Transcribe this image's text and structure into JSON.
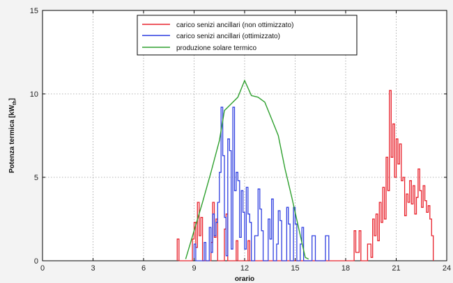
{
  "chart_data": {
    "type": "line",
    "title": "",
    "xlabel": "orario",
    "ylabel": "Potenza termica [kW",
    "ylabel_sub": "th",
    "ylabel_close": "]",
    "xlim": [
      0,
      24
    ],
    "ylim": [
      0,
      15
    ],
    "xticks": [
      0,
      3,
      6,
      9,
      12,
      15,
      18,
      21,
      24
    ],
    "yticks": [
      0,
      5,
      10,
      15
    ],
    "grid": true,
    "legend_position": "top",
    "series": [
      {
        "name": "carico senizi ancillari (non ottimizzato)",
        "color": "#e8202a",
        "style": "step",
        "points": [
          [
            8.0,
            0
          ],
          [
            8.0,
            1.3
          ],
          [
            8.1,
            1.3
          ],
          [
            8.1,
            0
          ],
          [
            8.9,
            0
          ],
          [
            8.9,
            1.3
          ],
          [
            9.0,
            1.3
          ],
          [
            9.0,
            2.3
          ],
          [
            9.1,
            2.3
          ],
          [
            9.1,
            0.8
          ],
          [
            9.2,
            0.8
          ],
          [
            9.2,
            3.5
          ],
          [
            9.3,
            3.5
          ],
          [
            9.3,
            1.5
          ],
          [
            9.4,
            1.5
          ],
          [
            9.4,
            2.6
          ],
          [
            9.5,
            2.6
          ],
          [
            9.5,
            0
          ],
          [
            10.0,
            0
          ],
          [
            10.0,
            1.1
          ],
          [
            10.1,
            1.1
          ],
          [
            10.1,
            3.5
          ],
          [
            10.2,
            3.5
          ],
          [
            10.2,
            1.4
          ],
          [
            10.3,
            1.4
          ],
          [
            10.3,
            2.5
          ],
          [
            10.4,
            2.5
          ],
          [
            10.4,
            0
          ],
          [
            10.8,
            0
          ],
          [
            10.8,
            1.9
          ],
          [
            10.9,
            1.9
          ],
          [
            10.9,
            2.8
          ],
          [
            11.0,
            2.8
          ],
          [
            11.0,
            0
          ],
          [
            11.5,
            0
          ],
          [
            11.5,
            1.2
          ],
          [
            11.6,
            1.2
          ],
          [
            11.6,
            0
          ],
          [
            12.2,
            0
          ],
          [
            12.2,
            1.2
          ],
          [
            12.3,
            1.2
          ],
          [
            12.3,
            0
          ],
          [
            18.5,
            0
          ],
          [
            18.5,
            1.8
          ],
          [
            18.6,
            1.8
          ],
          [
            18.6,
            0.5
          ],
          [
            18.8,
            0.5
          ],
          [
            18.8,
            1.8
          ],
          [
            18.9,
            1.8
          ],
          [
            18.9,
            0
          ],
          [
            19.3,
            0
          ],
          [
            19.3,
            1.0
          ],
          [
            19.5,
            1.0
          ],
          [
            19.5,
            0.2
          ],
          [
            19.6,
            0.2
          ],
          [
            19.6,
            2.5
          ],
          [
            19.7,
            2.5
          ],
          [
            19.7,
            1.5
          ],
          [
            19.8,
            1.5
          ],
          [
            19.8,
            2.8
          ],
          [
            19.9,
            2.8
          ],
          [
            19.9,
            1.2
          ],
          [
            20.0,
            1.2
          ],
          [
            20.0,
            3.5
          ],
          [
            20.1,
            3.5
          ],
          [
            20.1,
            2.3
          ],
          [
            20.2,
            2.3
          ],
          [
            20.2,
            4.4
          ],
          [
            20.3,
            4.4
          ],
          [
            20.3,
            2.5
          ],
          [
            20.4,
            2.5
          ],
          [
            20.4,
            6.2
          ],
          [
            20.5,
            6.2
          ],
          [
            20.5,
            4.2
          ],
          [
            20.6,
            4.2
          ],
          [
            20.6,
            10.2
          ],
          [
            20.7,
            10.2
          ],
          [
            20.7,
            6.2
          ],
          [
            20.8,
            6.2
          ],
          [
            20.8,
            8.2
          ],
          [
            20.9,
            8.2
          ],
          [
            20.9,
            5.0
          ],
          [
            21.0,
            5.0
          ],
          [
            21.0,
            7.3
          ],
          [
            21.1,
            7.3
          ],
          [
            21.1,
            5.8
          ],
          [
            21.2,
            5.8
          ],
          [
            21.2,
            7.0
          ],
          [
            21.3,
            7.0
          ],
          [
            21.3,
            4.8
          ],
          [
            21.4,
            4.8
          ],
          [
            21.4,
            5.0
          ],
          [
            21.5,
            5.0
          ],
          [
            21.5,
            2.7
          ],
          [
            21.6,
            2.7
          ],
          [
            21.6,
            4.0
          ],
          [
            21.7,
            4.0
          ],
          [
            21.7,
            3.5
          ],
          [
            21.8,
            3.5
          ],
          [
            21.8,
            4.8
          ],
          [
            21.9,
            4.8
          ],
          [
            21.9,
            3.4
          ],
          [
            22.0,
            3.4
          ],
          [
            22.0,
            4.5
          ],
          [
            22.1,
            4.5
          ],
          [
            22.1,
            2.8
          ],
          [
            22.2,
            2.8
          ],
          [
            22.2,
            3.8
          ],
          [
            22.3,
            3.8
          ],
          [
            22.3,
            5.5
          ],
          [
            22.4,
            5.5
          ],
          [
            22.4,
            4.2
          ],
          [
            22.5,
            4.2
          ],
          [
            22.5,
            3.2
          ],
          [
            22.6,
            3.2
          ],
          [
            22.6,
            4.5
          ],
          [
            22.7,
            4.5
          ],
          [
            22.7,
            3.6
          ],
          [
            22.8,
            3.6
          ],
          [
            22.8,
            2.9
          ],
          [
            22.9,
            2.9
          ],
          [
            22.9,
            3.3
          ],
          [
            23.0,
            3.3
          ],
          [
            23.0,
            2.5
          ],
          [
            23.1,
            2.5
          ],
          [
            23.1,
            1.5
          ],
          [
            23.2,
            1.5
          ],
          [
            23.2,
            0
          ]
        ]
      },
      {
        "name": "carico senizi ancillari (ottimizzato)",
        "color": "#2f3fe0",
        "style": "step",
        "points": [
          [
            9.0,
            0
          ],
          [
            9.0,
            1.0
          ],
          [
            9.1,
            1.0
          ],
          [
            9.1,
            0
          ],
          [
            9.6,
            0
          ],
          [
            9.6,
            1.1
          ],
          [
            9.7,
            1.1
          ],
          [
            9.7,
            0
          ],
          [
            9.9,
            0
          ],
          [
            9.9,
            2.0
          ],
          [
            10.0,
            2.0
          ],
          [
            10.0,
            0.5
          ],
          [
            10.1,
            0.5
          ],
          [
            10.1,
            2.8
          ],
          [
            10.2,
            2.8
          ],
          [
            10.2,
            1.5
          ],
          [
            10.3,
            1.5
          ],
          [
            10.3,
            2.3
          ],
          [
            10.4,
            2.3
          ],
          [
            10.4,
            3.5
          ],
          [
            10.5,
            3.5
          ],
          [
            10.5,
            5.3
          ],
          [
            10.6,
            5.3
          ],
          [
            10.6,
            9.2
          ],
          [
            10.7,
            9.2
          ],
          [
            10.7,
            6.3
          ],
          [
            10.8,
            6.3
          ],
          [
            10.8,
            2.6
          ],
          [
            10.9,
            2.6
          ],
          [
            10.9,
            0.3
          ],
          [
            11.0,
            0.3
          ],
          [
            11.0,
            7.3
          ],
          [
            11.1,
            7.3
          ],
          [
            11.1,
            6.6
          ],
          [
            11.2,
            6.6
          ],
          [
            11.2,
            0.7
          ],
          [
            11.3,
            0.7
          ],
          [
            11.3,
            9.2
          ],
          [
            11.4,
            9.2
          ],
          [
            11.4,
            4.2
          ],
          [
            11.5,
            4.2
          ],
          [
            11.5,
            5.3
          ],
          [
            11.6,
            5.3
          ],
          [
            11.6,
            4.8
          ],
          [
            11.7,
            4.8
          ],
          [
            11.7,
            1.4
          ],
          [
            11.8,
            1.4
          ],
          [
            11.8,
            4.2
          ],
          [
            11.9,
            4.2
          ],
          [
            11.9,
            2.9
          ],
          [
            12.0,
            2.9
          ],
          [
            12.0,
            0.7
          ],
          [
            12.1,
            0.7
          ],
          [
            12.1,
            4.4
          ],
          [
            12.2,
            4.4
          ],
          [
            12.2,
            2.8
          ],
          [
            12.3,
            2.8
          ],
          [
            12.3,
            2.3
          ],
          [
            12.4,
            2.3
          ],
          [
            12.4,
            0
          ],
          [
            12.6,
            0
          ],
          [
            12.6,
            1.5
          ],
          [
            12.8,
            1.5
          ],
          [
            12.8,
            4.3
          ],
          [
            12.9,
            4.3
          ],
          [
            12.9,
            3.1
          ],
          [
            13.0,
            3.1
          ],
          [
            13.0,
            1.8
          ],
          [
            13.1,
            1.8
          ],
          [
            13.1,
            0
          ],
          [
            13.4,
            0
          ],
          [
            13.4,
            2.5
          ],
          [
            13.5,
            2.5
          ],
          [
            13.5,
            1.3
          ],
          [
            13.6,
            1.3
          ],
          [
            13.6,
            3.7
          ],
          [
            13.7,
            3.7
          ],
          [
            13.7,
            0
          ],
          [
            13.9,
            0
          ],
          [
            13.9,
            1.0
          ],
          [
            14.0,
            1.0
          ],
          [
            14.0,
            3.0
          ],
          [
            14.1,
            3.0
          ],
          [
            14.1,
            2.4
          ],
          [
            14.2,
            2.4
          ],
          [
            14.2,
            0
          ],
          [
            14.5,
            0
          ],
          [
            14.5,
            3.2
          ],
          [
            14.6,
            3.2
          ],
          [
            14.6,
            2.2
          ],
          [
            14.7,
            2.2
          ],
          [
            14.7,
            0
          ],
          [
            14.9,
            0
          ],
          [
            14.9,
            3.2
          ],
          [
            15.0,
            3.2
          ],
          [
            15.0,
            2.2
          ],
          [
            15.1,
            2.2
          ],
          [
            15.1,
            0
          ],
          [
            15.3,
            0
          ],
          [
            15.3,
            1.0
          ],
          [
            15.4,
            1.0
          ],
          [
            15.4,
            2.0
          ],
          [
            15.5,
            2.0
          ],
          [
            15.5,
            0
          ],
          [
            16.0,
            0
          ],
          [
            16.0,
            1.5
          ],
          [
            16.2,
            1.5
          ],
          [
            16.2,
            0
          ],
          [
            16.8,
            0
          ],
          [
            16.8,
            1.5
          ],
          [
            17.0,
            1.5
          ],
          [
            17.0,
            0
          ]
        ]
      },
      {
        "name": "produzione solare termico",
        "color": "#2ea02e",
        "style": "line",
        "points": [
          [
            8.5,
            0.1
          ],
          [
            9.0,
            1.8
          ],
          [
            9.5,
            3.5
          ],
          [
            10.0,
            5.3
          ],
          [
            10.5,
            7.2
          ],
          [
            10.8,
            9.0
          ],
          [
            11.2,
            9.4
          ],
          [
            11.6,
            9.8
          ],
          [
            12.0,
            10.8
          ],
          [
            12.4,
            9.9
          ],
          [
            12.8,
            9.8
          ],
          [
            13.2,
            9.5
          ],
          [
            13.6,
            8.5
          ],
          [
            14.0,
            7.5
          ],
          [
            14.4,
            5.5
          ],
          [
            14.8,
            3.8
          ],
          [
            15.2,
            2.0
          ],
          [
            15.6,
            0.2
          ],
          [
            15.8,
            0.1
          ]
        ]
      }
    ]
  }
}
